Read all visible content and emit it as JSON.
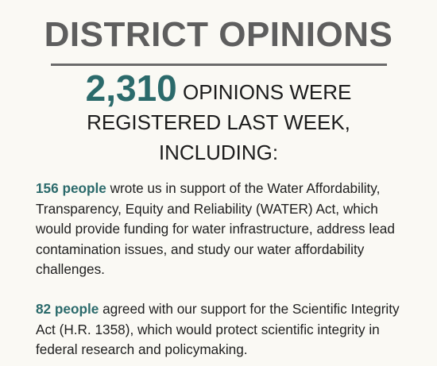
{
  "title": "DISTRICT OPINIONS",
  "headline": {
    "number": "2,310",
    "line1_rest": " OPINIONS WERE",
    "line2": "REGISTERED LAST WEEK,",
    "line3": "INCLUDING:"
  },
  "items": [
    {
      "count": "156 people",
      "text": " wrote us in support of the Water Affordability, Transparency, Equity and Reliability (WATER) Act, which would provide funding for water infrastructure, address lead contamination issues, and study our water affordability challenges."
    },
    {
      "count": "82 people",
      "text": " agreed with our support for the Scientific Integrity Act (H.R. 1358), which would protect scientific integrity in federal research and policymaking."
    }
  ],
  "colors": {
    "accent": "#2b6a6b",
    "title": "#5e5e5e",
    "background": "#faf9f4"
  }
}
